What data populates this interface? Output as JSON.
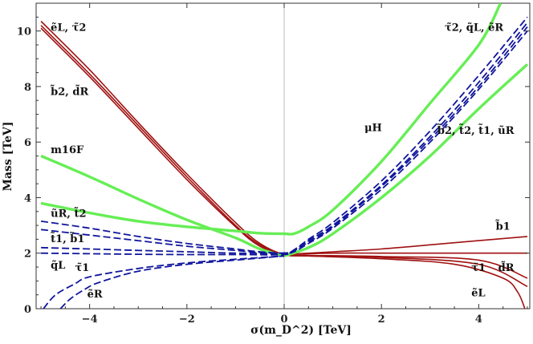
{
  "chart_data": {
    "type": "line",
    "xlabel": "σ(m_D^2) [TeV]",
    "ylabel": "Mass [TeV]",
    "xlim": [
      -5.1,
      5.05
    ],
    "ylim": [
      0,
      11
    ],
    "xticks": [
      -4,
      -2,
      0,
      2,
      4
    ],
    "yticks": [
      0,
      2,
      4,
      6,
      8,
      10
    ],
    "grid": false,
    "colors": {
      "red": "#a01010",
      "green": "#66ee55",
      "blue": "#10169c",
      "vline": "#bbbbbb"
    },
    "series": [
      {
        "color": "red",
        "dash": false,
        "points": [
          [
            -5,
            10.35
          ],
          [
            -4,
            8.6
          ],
          [
            -3,
            6.7
          ],
          [
            -2,
            4.85
          ],
          [
            -1,
            3.1
          ],
          [
            -0.5,
            2.35
          ],
          [
            0,
            1.95
          ],
          [
            0.5,
            1.9
          ],
          [
            2,
            1.85
          ],
          [
            4,
            1.6
          ],
          [
            5,
            0.8
          ]
        ]
      },
      {
        "color": "red",
        "dash": false,
        "points": [
          [
            -5,
            10.2
          ],
          [
            -4,
            8.45
          ],
          [
            -3,
            6.6
          ],
          [
            -2,
            4.75
          ],
          [
            -1,
            3.0
          ],
          [
            -0.5,
            2.3
          ],
          [
            0,
            1.95
          ],
          [
            0.5,
            1.92
          ],
          [
            2,
            1.88
          ],
          [
            4,
            1.75
          ],
          [
            5,
            1.1
          ]
        ]
      },
      {
        "color": "red",
        "dash": false,
        "points": [
          [
            -5,
            10.1
          ],
          [
            -4,
            8.35
          ],
          [
            -3,
            6.5
          ],
          [
            -2,
            4.65
          ],
          [
            -1,
            2.95
          ],
          [
            -0.5,
            2.25
          ],
          [
            0,
            1.95
          ],
          [
            0.5,
            1.9
          ],
          [
            2,
            1.8
          ],
          [
            3.5,
            1.6
          ],
          [
            4.5,
            1.1
          ],
          [
            4.8,
            0.6
          ],
          [
            4.95,
            0.0
          ]
        ]
      },
      {
        "color": "red",
        "dash": false,
        "points": [
          [
            0,
            1.95
          ],
          [
            1,
            2.0
          ],
          [
            2,
            2.0
          ],
          [
            3,
            2.0
          ],
          [
            4,
            2.0
          ],
          [
            5,
            2.0
          ]
        ]
      },
      {
        "color": "red",
        "dash": false,
        "points": [
          [
            0,
            1.95
          ],
          [
            1,
            2.05
          ],
          [
            2,
            2.15
          ],
          [
            3,
            2.3
          ],
          [
            4,
            2.45
          ],
          [
            5,
            2.6
          ]
        ]
      },
      {
        "color": "green",
        "dash": false,
        "points": [
          [
            -5,
            5.5
          ],
          [
            -4,
            4.75
          ],
          [
            -3,
            3.95
          ],
          [
            -2,
            3.2
          ],
          [
            -1,
            2.55
          ],
          [
            -0.5,
            2.15
          ],
          [
            0,
            1.9
          ]
        ]
      },
      {
        "color": "green",
        "dash": false,
        "points": [
          [
            -5,
            3.8
          ],
          [
            -4,
            3.45
          ],
          [
            -3,
            3.15
          ],
          [
            -2,
            2.95
          ],
          [
            -1,
            2.8
          ],
          [
            -0.5,
            2.72
          ],
          [
            0,
            2.7
          ],
          [
            0.2,
            2.7
          ],
          [
            0.5,
            2.95
          ],
          [
            1,
            3.55
          ],
          [
            2,
            5.3
          ],
          [
            3,
            7.4
          ],
          [
            4,
            9.5
          ],
          [
            4.45,
            11.0
          ]
        ]
      },
      {
        "color": "green",
        "dash": false,
        "points": [
          [
            0,
            1.9
          ],
          [
            0.5,
            2.2
          ],
          [
            1,
            2.7
          ],
          [
            2,
            4.0
          ],
          [
            3,
            5.5
          ],
          [
            4,
            7.2
          ],
          [
            5,
            8.8
          ]
        ]
      },
      {
        "color": "blue",
        "dash": true,
        "points": [
          [
            -5,
            3.15
          ],
          [
            -4,
            2.9
          ],
          [
            -3,
            2.6
          ],
          [
            -2,
            2.35
          ],
          [
            -1,
            2.15
          ],
          [
            -0.5,
            2.05
          ],
          [
            0,
            2.0
          ],
          [
            0.2,
            2.05
          ],
          [
            0.5,
            2.35
          ],
          [
            1,
            2.9
          ],
          [
            2,
            4.3
          ],
          [
            3,
            6.0
          ],
          [
            4,
            7.9
          ],
          [
            5,
            10.0
          ]
        ]
      },
      {
        "color": "blue",
        "dash": true,
        "points": [
          [
            -5,
            2.85
          ],
          [
            -4,
            2.65
          ],
          [
            -3,
            2.45
          ],
          [
            -2,
            2.25
          ],
          [
            -1,
            2.1
          ],
          [
            -0.5,
            2.02
          ],
          [
            0,
            2.0
          ],
          [
            0.2,
            2.1
          ],
          [
            0.5,
            2.45
          ],
          [
            1,
            3.0
          ],
          [
            2,
            4.45
          ],
          [
            3,
            6.2
          ],
          [
            4,
            8.15
          ],
          [
            5,
            10.3
          ]
        ]
      },
      {
        "color": "blue",
        "dash": true,
        "points": [
          [
            -5,
            2.2
          ],
          [
            -4,
            2.15
          ],
          [
            -3,
            2.1
          ],
          [
            -2,
            2.05
          ],
          [
            -1,
            2.0
          ],
          [
            0,
            2.0
          ],
          [
            0.2,
            2.12
          ],
          [
            0.5,
            2.5
          ],
          [
            1,
            3.1
          ],
          [
            2,
            4.6
          ],
          [
            3,
            6.4
          ],
          [
            4,
            8.4
          ],
          [
            5,
            10.5
          ]
        ]
      },
      {
        "color": "blue",
        "dash": true,
        "points": [
          [
            -5,
            2.0
          ],
          [
            -4,
            1.98
          ],
          [
            -3,
            1.96
          ],
          [
            -2,
            1.95
          ],
          [
            -1,
            1.95
          ],
          [
            0,
            1.95
          ],
          [
            0.2,
            2.08
          ],
          [
            0.5,
            2.4
          ],
          [
            1,
            2.95
          ],
          [
            2,
            4.4
          ],
          [
            3,
            6.1
          ],
          [
            4,
            8.0
          ],
          [
            5,
            10.15
          ]
        ]
      },
      {
        "color": "blue",
        "dash": true,
        "points": [
          [
            -4.95,
            0.0
          ],
          [
            -4.7,
            0.5
          ],
          [
            -4.3,
            0.9
          ],
          [
            -4,
            1.15
          ],
          [
            -3,
            1.45
          ],
          [
            -2,
            1.65
          ],
          [
            -1,
            1.78
          ],
          [
            0,
            1.9
          ]
        ]
      },
      {
        "color": "blue",
        "dash": true,
        "points": [
          [
            -4.6,
            0.0
          ],
          [
            -4.4,
            0.35
          ],
          [
            -4.1,
            0.7
          ],
          [
            -3.8,
            0.95
          ],
          [
            -3,
            1.35
          ],
          [
            -2,
            1.6
          ],
          [
            -1,
            1.75
          ],
          [
            0,
            1.9
          ]
        ]
      }
    ],
    "annotations": [
      {
        "text": "ẽL, τ̃2",
        "x": -4.8,
        "y": 10.0
      },
      {
        "text": "b̃2, d̃R",
        "x": -4.8,
        "y": 7.7
      },
      {
        "text": "m16F",
        "x": -4.8,
        "y": 5.6
      },
      {
        "text": "ũR, t̃2",
        "x": -4.8,
        "y": 3.3
      },
      {
        "text": "t̃1, b̃1",
        "x": -4.8,
        "y": 2.4
      },
      {
        "text": "q̃L",
        "x": -4.8,
        "y": 1.45
      },
      {
        "text": "τ̃1",
        "x": -4.3,
        "y": 1.35
      },
      {
        "text": "ẽR",
        "x": -4.05,
        "y": 0.4
      },
      {
        "text": "μH",
        "x": 1.65,
        "y": 6.4
      },
      {
        "text": "τ̃2, q̃L, ẽR",
        "x": 3.3,
        "y": 10.0
      },
      {
        "text": "b̃2, t̃2, t̃1, ũR",
        "x": 3.15,
        "y": 6.3
      },
      {
        "text": "b̃1",
        "x": 4.35,
        "y": 2.85
      },
      {
        "text": "τ̃1",
        "x": 3.85,
        "y": 1.35
      },
      {
        "text": "d̃R",
        "x": 4.4,
        "y": 1.35
      },
      {
        "text": "ẽL",
        "x": 3.85,
        "y": 0.45
      }
    ]
  }
}
